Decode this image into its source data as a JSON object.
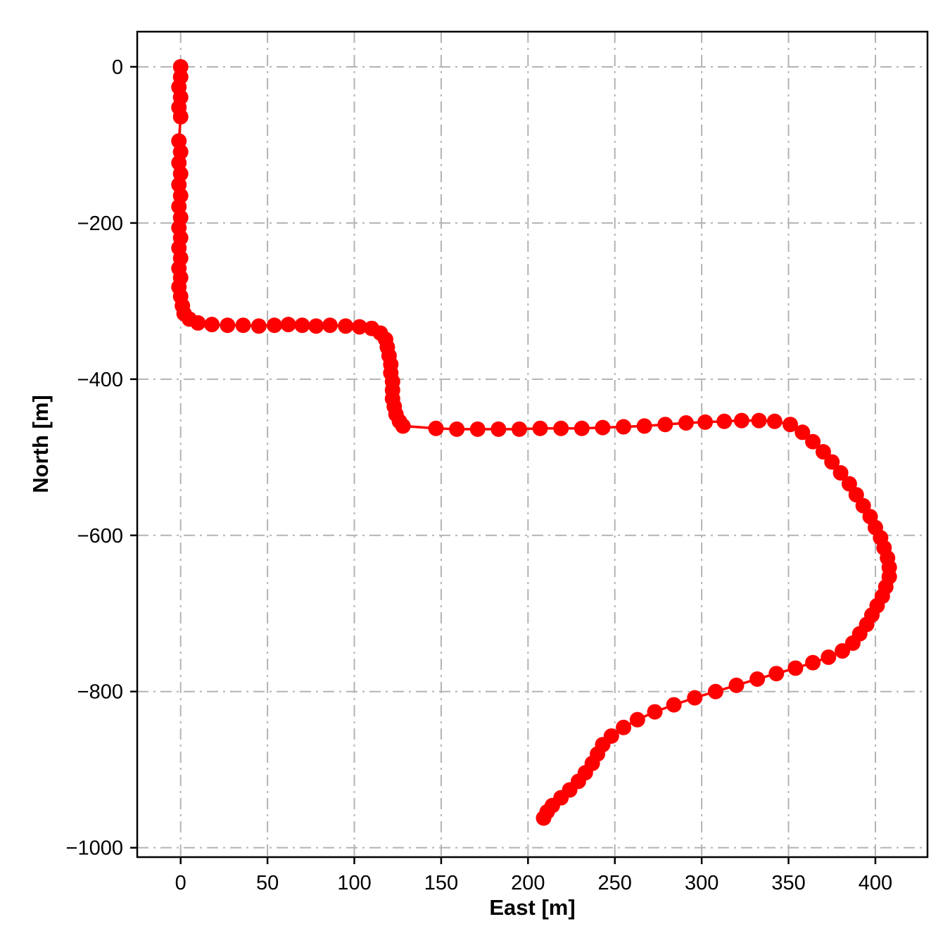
{
  "figure": {
    "background": "#ffffff",
    "frame_color": "#000000"
  },
  "chart_data": {
    "type": "scatter",
    "title": "",
    "xlabel": "East [m]",
    "ylabel": "North [m]",
    "xlim": [
      -25,
      430
    ],
    "ylim": [
      -1012,
      45
    ],
    "xticks": [
      0,
      50,
      100,
      150,
      200,
      250,
      300,
      350,
      400
    ],
    "yticks": [
      0,
      -200,
      -400,
      -600,
      -800,
      -1000
    ],
    "grid": {
      "on": true,
      "color": "#b3b3b3",
      "style": "dash-dot",
      "width": 2
    },
    "legend": {
      "visible": false
    },
    "series": [
      {
        "name": "vehicle-trajectory",
        "color": "#ff0000",
        "marker": "circle",
        "marker_size": 11,
        "line_width": 3.5,
        "points": [
          [
            0,
            0
          ],
          [
            0,
            -13
          ],
          [
            -1,
            -26
          ],
          [
            0,
            -39
          ],
          [
            -1,
            -52
          ],
          [
            0,
            -64
          ],
          [
            -1,
            -95
          ],
          [
            0,
            -109
          ],
          [
            -1,
            -123
          ],
          [
            0,
            -137
          ],
          [
            -1,
            -151
          ],
          [
            0,
            -165
          ],
          [
            -1,
            -179
          ],
          [
            0,
            -193
          ],
          [
            -1,
            -206
          ],
          [
            0,
            -219
          ],
          [
            -1,
            -232
          ],
          [
            0,
            -245
          ],
          [
            -1,
            -258
          ],
          [
            0,
            -270
          ],
          [
            -1,
            -282
          ],
          [
            0,
            -294
          ],
          [
            1,
            -306
          ],
          [
            2,
            -316
          ],
          [
            5,
            -323
          ],
          [
            10,
            -328
          ],
          [
            18,
            -330
          ],
          [
            27,
            -331
          ],
          [
            36,
            -331
          ],
          [
            45,
            -332
          ],
          [
            54,
            -331
          ],
          [
            62,
            -330
          ],
          [
            70,
            -331
          ],
          [
            78,
            -332
          ],
          [
            86,
            -331
          ],
          [
            95,
            -332
          ],
          [
            103,
            -333
          ],
          [
            110,
            -335
          ],
          [
            115,
            -341
          ],
          [
            118,
            -349
          ],
          [
            119,
            -359
          ],
          [
            120,
            -370
          ],
          [
            121,
            -381
          ],
          [
            121,
            -392
          ],
          [
            122,
            -403
          ],
          [
            122,
            -414
          ],
          [
            122,
            -425
          ],
          [
            123,
            -435
          ],
          [
            124,
            -445
          ],
          [
            126,
            -454
          ],
          [
            128,
            -460
          ],
          [
            147,
            -463
          ],
          [
            159,
            -464
          ],
          [
            171,
            -464
          ],
          [
            183,
            -464
          ],
          [
            195,
            -464
          ],
          [
            207,
            -463
          ],
          [
            219,
            -463
          ],
          [
            231,
            -463
          ],
          [
            243,
            -462
          ],
          [
            255,
            -461
          ],
          [
            267,
            -460
          ],
          [
            279,
            -458
          ],
          [
            291,
            -456
          ],
          [
            302,
            -455
          ],
          [
            313,
            -454
          ],
          [
            323,
            -453
          ],
          [
            333,
            -453
          ],
          [
            342,
            -454
          ],
          [
            351,
            -458
          ],
          [
            358,
            -468
          ],
          [
            364,
            -480
          ],
          [
            370,
            -493
          ],
          [
            375,
            -506
          ],
          [
            380,
            -520
          ],
          [
            385,
            -534
          ],
          [
            389,
            -548
          ],
          [
            393,
            -562
          ],
          [
            397,
            -576
          ],
          [
            400,
            -590
          ],
          [
            403,
            -603
          ],
          [
            405,
            -616
          ],
          [
            407,
            -629
          ],
          [
            408,
            -641
          ],
          [
            408,
            -653
          ],
          [
            406,
            -666
          ],
          [
            404,
            -678
          ],
          [
            401,
            -690
          ],
          [
            398,
            -702
          ],
          [
            395,
            -714
          ],
          [
            391,
            -726
          ],
          [
            387,
            -738
          ],
          [
            381,
            -748
          ],
          [
            373,
            -756
          ],
          [
            364,
            -763
          ],
          [
            354,
            -770
          ],
          [
            343,
            -777
          ],
          [
            332,
            -784
          ],
          [
            320,
            -792
          ],
          [
            308,
            -800
          ],
          [
            296,
            -808
          ],
          [
            284,
            -817
          ],
          [
            273,
            -826
          ],
          [
            263,
            -836
          ],
          [
            255,
            -846
          ],
          [
            248,
            -857
          ],
          [
            243,
            -868
          ],
          [
            240,
            -880
          ],
          [
            237,
            -892
          ],
          [
            233,
            -904
          ],
          [
            229,
            -915
          ],
          [
            224,
            -926
          ],
          [
            219,
            -936
          ],
          [
            214,
            -946
          ],
          [
            211,
            -954
          ],
          [
            209,
            -962
          ]
        ]
      }
    ]
  }
}
